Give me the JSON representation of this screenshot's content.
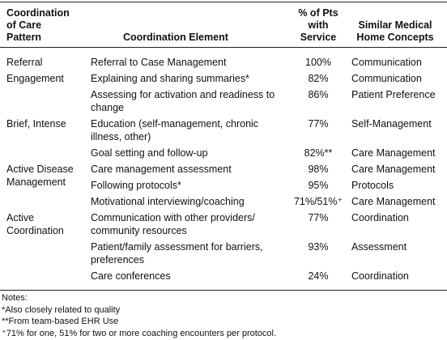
{
  "table": {
    "header": [
      "Coordination of Care Pattern",
      "Coordination Element",
      "% of Pts with Service",
      "Similar Medical Home Concepts"
    ],
    "rows": [
      {
        "pattern": "Referral",
        "element": "Referral to Case Management",
        "pct": "100%",
        "concept": "Communication"
      },
      {
        "pattern": "Engagement",
        "element": "Explaining and sharing summaries*",
        "pct": "82%",
        "concept": "Communication"
      },
      {
        "element": "Assessing for activation and readiness to change",
        "pct": "86%",
        "concept": "Patient Preference"
      },
      {
        "pattern": "Brief, Intense",
        "element": "Education (self-management, chronic illness, other)",
        "pct": "77%",
        "concept": "Self-Management"
      },
      {
        "element": "Goal setting and follow-up",
        "pct": "82%**",
        "concept": "Care Management"
      },
      {
        "pattern": "Active Disease Management",
        "element": "Care management assessment",
        "pct": "98%",
        "concept": "Care Management"
      },
      {
        "element": "Following protocols*",
        "pct": "95%",
        "concept": "Protocols"
      },
      {
        "element": "Motivational interviewing/coaching",
        "pct": "71%/51%⁺",
        "concept": "Care Management"
      },
      {
        "pattern": "Active Coordination",
        "element": "Communication with other providers/ community resources",
        "pct": "77%",
        "concept": "Coordination"
      },
      {
        "element": "Patient/family assessment for barriers, preferences",
        "pct": "93%",
        "concept": "Assessment"
      },
      {
        "element": "Care conferences",
        "pct": "24%",
        "concept": "Coordination"
      }
    ]
  },
  "notes": {
    "title": "Notes:",
    "items": [
      "*Also closely related to quality",
      "**From team-based EHR Use",
      "⁺71% for one, 51% for two or more coaching encounters per protocol."
    ]
  }
}
